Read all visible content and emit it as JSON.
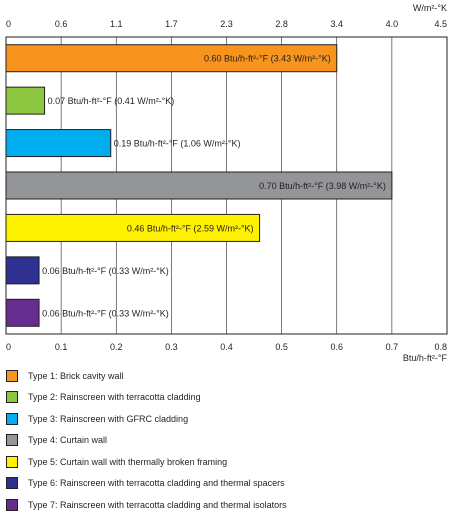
{
  "chart_data": {
    "type": "bar",
    "orientation": "horizontal",
    "title": "",
    "x_axis_bottom": {
      "unit_label": "Btu/h-ft²-°F",
      "range": [
        0,
        0.8
      ],
      "ticks": [
        "0",
        "0.1",
        "0.2",
        "0.3",
        "0.4",
        "0.5",
        "0.6",
        "0.7",
        "0.8"
      ]
    },
    "x_axis_top": {
      "unit_label": "W/m²-°K",
      "ticks": [
        "0",
        "0.6",
        "1.1",
        "1.7",
        "2.3",
        "2.8",
        "3.4",
        "4.0",
        "4.5"
      ]
    },
    "grid": true,
    "categories": [
      "Type 1",
      "Type 2",
      "Type 3",
      "Type 4",
      "Type 5",
      "Type 6",
      "Type 7"
    ],
    "values": [
      0.6,
      0.07,
      0.19,
      0.7,
      0.46,
      0.06,
      0.06
    ],
    "bar_labels": [
      "0.60 Btu/h-ft²-°F (3.43 W/m²-°K)",
      "0.07 Btu/h-ft²-°F (0.41 W/m²-°K)",
      "0.19 Btu/h-ft²-°F (1.06 W/m²-°K)",
      "0.70 Btu/h-ft²-°F (3.98 W/m²-°K)",
      "0.46 Btu/h-ft²-°F (2.59 W/m²-°K)",
      "0.06 Btu/h-ft²-°F (0.33 W/m²-°K)",
      "0.06 Btu/h-ft²-°F (0.33 W/m²-°K)"
    ],
    "colors": [
      "#f7941d",
      "#8dc63f",
      "#00aeef",
      "#939598",
      "#fff200",
      "#2e3192",
      "#662d91"
    ],
    "legend_placement": "bottom",
    "legend": [
      "Type 1: Brick cavity wall",
      "Type 2: Rainscreen with terracotta cladding",
      "Type 3: Rainscreen with GFRC cladding",
      "Type 4: Curtain wall",
      "Type 5: Curtain wall with thermally broken framing",
      "Type 6: Rainscreen with terracotta cladding and thermal spacers",
      "Type 7: Rainscreen with terracotta cladding and thermal isolators"
    ]
  }
}
